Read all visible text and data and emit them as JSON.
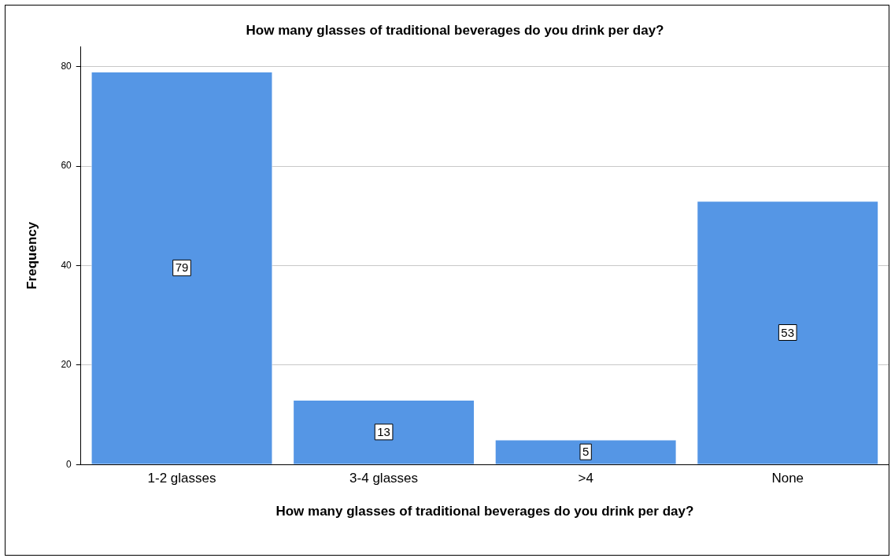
{
  "chart_data": {
    "type": "bar",
    "title": "How many glasses of traditional beverages do you drink per day?",
    "xlabel": "How many glasses of traditional beverages do you drink per day?",
    "ylabel": "Frequency",
    "categories": [
      "1-2 glasses",
      "3-4 glasses",
      ">4",
      "None"
    ],
    "values": [
      79,
      13,
      5,
      53
    ],
    "color": "#5596e5",
    "ylim": [
      0,
      84
    ],
    "yticks": [
      0,
      20,
      40,
      60,
      80
    ],
    "grid": "y",
    "data_labels": true
  }
}
